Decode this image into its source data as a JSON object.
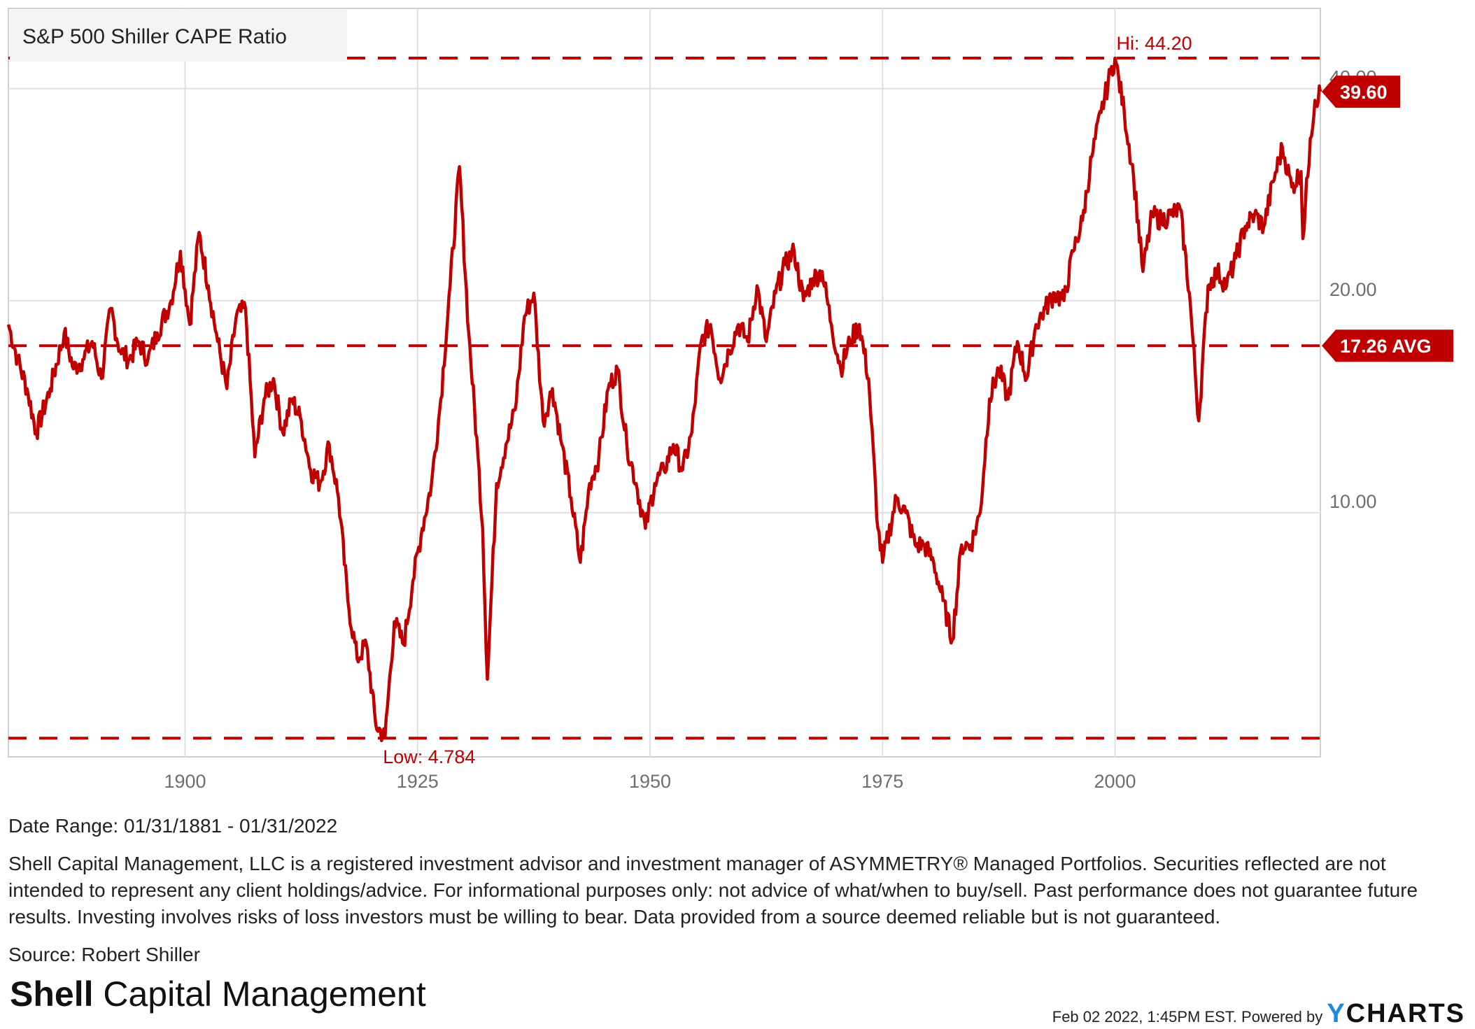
{
  "chart_data": {
    "type": "line",
    "title": "S&P 500 Shiller CAPE Ratio",
    "series_name": "S&P 500 Shiller CAPE Ratio",
    "yscale": "log",
    "ylim": [
      4.5,
      52
    ],
    "xlim": [
      1881.0,
      2022.08
    ],
    "x_ticks": [
      1900,
      1925,
      1950,
      1975,
      2000
    ],
    "x_tick_labels": [
      "1900",
      "1925",
      "1950",
      "1975",
      "2000"
    ],
    "y_ticks": [
      10,
      20,
      40
    ],
    "y_tick_labels": [
      "10.00",
      "20.00",
      "40.00"
    ],
    "reference_lines": {
      "high": {
        "value": 44.2,
        "label": "Hi: 44.20"
      },
      "average": {
        "value": 17.26,
        "label": "17.26 AVG"
      },
      "low": {
        "value": 4.784,
        "label": "Low: 4.784"
      }
    },
    "last_value": {
      "value": 39.6,
      "label": "39.60"
    },
    "points": [
      [
        1881.0,
        18.5
      ],
      [
        1882.0,
        16.5
      ],
      [
        1883.0,
        15.0
      ],
      [
        1884.0,
        13.0
      ],
      [
        1885.5,
        15.0
      ],
      [
        1887.0,
        18.0
      ],
      [
        1888.0,
        16.0
      ],
      [
        1889.0,
        16.5
      ],
      [
        1890.0,
        17.5
      ],
      [
        1891.0,
        15.5
      ],
      [
        1892.0,
        19.5
      ],
      [
        1893.0,
        17.0
      ],
      [
        1894.0,
        16.5
      ],
      [
        1895.0,
        17.5
      ],
      [
        1896.0,
        16.5
      ],
      [
        1897.0,
        18.0
      ],
      [
        1898.5,
        20.0
      ],
      [
        1899.5,
        23.5
      ],
      [
        1900.5,
        18.5
      ],
      [
        1901.5,
        25.0
      ],
      [
        1902.5,
        21.0
      ],
      [
        1903.5,
        17.5
      ],
      [
        1904.5,
        15.0
      ],
      [
        1905.5,
        19.0
      ],
      [
        1906.5,
        19.5
      ],
      [
        1907.5,
        12.0
      ],
      [
        1908.5,
        14.5
      ],
      [
        1909.5,
        15.5
      ],
      [
        1910.5,
        13.0
      ],
      [
        1911.5,
        14.5
      ],
      [
        1912.5,
        13.5
      ],
      [
        1913.5,
        11.5
      ],
      [
        1914.5,
        11.0
      ],
      [
        1915.5,
        12.5
      ],
      [
        1916.5,
        10.5
      ],
      [
        1917.5,
        7.5
      ],
      [
        1918.5,
        6.2
      ],
      [
        1919.5,
        6.5
      ],
      [
        1920.5,
        5.0
      ],
      [
        1921.5,
        4.8
      ],
      [
        1922.5,
        7.0
      ],
      [
        1923.5,
        6.5
      ],
      [
        1924.5,
        8.0
      ],
      [
        1925.5,
        9.5
      ],
      [
        1926.5,
        11.0
      ],
      [
        1927.5,
        14.5
      ],
      [
        1928.5,
        21.0
      ],
      [
        1929.5,
        31.0
      ],
      [
        1930.5,
        18.0
      ],
      [
        1931.5,
        12.0
      ],
      [
        1932.0,
        9.5
      ],
      [
        1932.5,
        5.8
      ],
      [
        1933.5,
        11.0
      ],
      [
        1934.5,
        12.5
      ],
      [
        1935.5,
        14.0
      ],
      [
        1936.5,
        19.0
      ],
      [
        1937.5,
        20.5
      ],
      [
        1938.5,
        13.5
      ],
      [
        1939.5,
        15.0
      ],
      [
        1940.5,
        12.5
      ],
      [
        1941.5,
        10.5
      ],
      [
        1942.5,
        8.5
      ],
      [
        1943.5,
        11.0
      ],
      [
        1944.5,
        12.0
      ],
      [
        1945.5,
        15.0
      ],
      [
        1946.5,
        16.0
      ],
      [
        1947.5,
        12.5
      ],
      [
        1948.5,
        11.0
      ],
      [
        1949.5,
        9.5
      ],
      [
        1950.5,
        11.0
      ],
      [
        1951.5,
        11.5
      ],
      [
        1952.5,
        12.5
      ],
      [
        1953.5,
        11.5
      ],
      [
        1954.5,
        13.0
      ],
      [
        1955.5,
        17.5
      ],
      [
        1956.5,
        18.5
      ],
      [
        1957.5,
        15.5
      ],
      [
        1958.5,
        17.0
      ],
      [
        1959.5,
        18.5
      ],
      [
        1960.5,
        17.5
      ],
      [
        1961.5,
        21.0
      ],
      [
        1962.5,
        17.5
      ],
      [
        1963.5,
        20.5
      ],
      [
        1964.5,
        22.5
      ],
      [
        1965.5,
        23.5
      ],
      [
        1966.5,
        20.0
      ],
      [
        1967.5,
        21.5
      ],
      [
        1968.5,
        22.0
      ],
      [
        1969.5,
        18.5
      ],
      [
        1970.5,
        16.0
      ],
      [
        1971.5,
        17.5
      ],
      [
        1972.5,
        18.5
      ],
      [
        1973.5,
        15.5
      ],
      [
        1974.5,
        9.5
      ],
      [
        1975.0,
        8.5
      ],
      [
        1976.5,
        10.5
      ],
      [
        1977.5,
        10.0
      ],
      [
        1978.5,
        9.0
      ],
      [
        1979.5,
        9.0
      ],
      [
        1980.5,
        8.5
      ],
      [
        1981.5,
        7.5
      ],
      [
        1982.5,
        6.6
      ],
      [
        1983.5,
        9.0
      ],
      [
        1984.5,
        9.0
      ],
      [
        1985.5,
        10.0
      ],
      [
        1986.5,
        14.5
      ],
      [
        1987.5,
        16.0
      ],
      [
        1988.5,
        14.5
      ],
      [
        1989.5,
        17.5
      ],
      [
        1990.5,
        15.5
      ],
      [
        1991.5,
        18.5
      ],
      [
        1992.5,
        19.5
      ],
      [
        1993.5,
        20.5
      ],
      [
        1994.5,
        20.0
      ],
      [
        1995.5,
        23.5
      ],
      [
        1996.5,
        26.0
      ],
      [
        1997.5,
        32.0
      ],
      [
        1998.5,
        37.0
      ],
      [
        1999.5,
        42.0
      ],
      [
        2000.0,
        44.2
      ],
      [
        2001.0,
        37.0
      ],
      [
        2002.0,
        30.0
      ],
      [
        2003.0,
        22.0
      ],
      [
        2004.0,
        26.5
      ],
      [
        2005.0,
        26.0
      ],
      [
        2006.0,
        26.5
      ],
      [
        2007.0,
        27.0
      ],
      [
        2008.0,
        20.5
      ],
      [
        2009.0,
        13.5
      ],
      [
        2010.0,
        21.0
      ],
      [
        2011.0,
        22.0
      ],
      [
        2012.0,
        21.0
      ],
      [
        2013.0,
        23.0
      ],
      [
        2014.0,
        25.5
      ],
      [
        2015.0,
        26.5
      ],
      [
        2016.0,
        25.5
      ],
      [
        2017.0,
        29.5
      ],
      [
        2018.0,
        33.0
      ],
      [
        2019.0,
        29.0
      ],
      [
        2020.0,
        30.5
      ],
      [
        2020.2,
        24.5
      ],
      [
        2021.0,
        34.0
      ],
      [
        2021.5,
        38.5
      ],
      [
        2022.08,
        39.6
      ]
    ]
  },
  "meta": {
    "date_range": "Date Range: 01/31/1881 - 01/31/2022",
    "disclaimer": "Shell Capital Management, LLC is a registered investment advisor and investment manager of ASYMMETRY® Managed Portfolios. Securities reflected are not intended to represent any client holdings/advice. For informational purposes only: not advice of what/when to buy/sell. Past performance does not guarantee future results. Investing involves risks of loss investors must be willing to bear. Data provided from a source deemed reliable but is not guaranteed.",
    "source": "Source: Robert Shiller",
    "logo_bold": "Shell",
    "logo_light": " Capital Management",
    "timestamp": "Feb 02 2022, 1:45PM EST.  Powered by ",
    "ycharts_y": "Y",
    "ycharts_rest": "CHARTS"
  },
  "colors": {
    "series": "#c00000",
    "grid": "#e0e0e0",
    "axis_text": "#6e6e6e"
  }
}
